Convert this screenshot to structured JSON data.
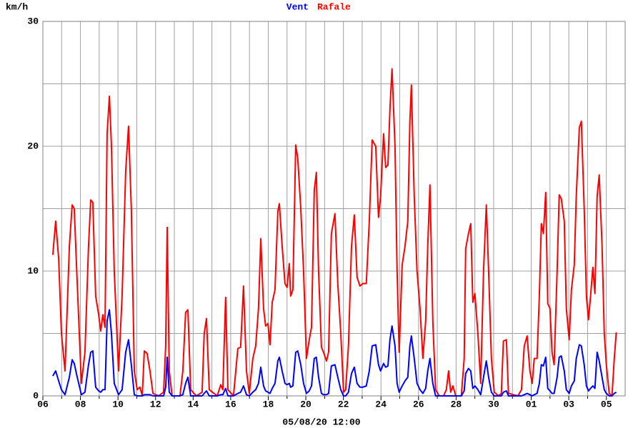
{
  "chart_data": {
    "type": "line",
    "y_label": "km/h",
    "x_label": "05/08/20 12:00",
    "xlim": [
      0,
      31
    ],
    "ylim": [
      0,
      30
    ],
    "yticks": [
      0,
      10,
      20,
      30
    ],
    "yminor": [
      5,
      15,
      25
    ],
    "xticks": [
      {
        "value": 0,
        "label": "06"
      },
      {
        "value": 2,
        "label": "08"
      },
      {
        "value": 4,
        "label": "10"
      },
      {
        "value": 6,
        "label": "12"
      },
      {
        "value": 8,
        "label": "14"
      },
      {
        "value": 10,
        "label": "16"
      },
      {
        "value": 12,
        "label": "18"
      },
      {
        "value": 14,
        "label": "20"
      },
      {
        "value": 16,
        "label": "22"
      },
      {
        "value": 18,
        "label": "24"
      },
      {
        "value": 20,
        "label": "26"
      },
      {
        "value": 22,
        "label": "28"
      },
      {
        "value": 24,
        "label": "30"
      },
      {
        "value": 26,
        "label": "01"
      },
      {
        "value": 28,
        "label": "03"
      },
      {
        "value": 30,
        "label": "05"
      }
    ],
    "xminor": [
      1,
      3,
      5,
      7,
      9,
      11,
      13,
      15,
      17,
      19,
      21,
      23,
      25,
      27,
      29
    ],
    "grid": true,
    "x": [
      0.53,
      0.68,
      0.84,
      0.99,
      1.18,
      1.41,
      1.56,
      1.67,
      1.83,
      2.05,
      2.24,
      2.43,
      2.55,
      2.66,
      2.81,
      2.97,
      3.08,
      3.19,
      3.31,
      3.42,
      3.54,
      3.65,
      3.8,
      4.03,
      4.22,
      4.41,
      4.56,
      4.71,
      4.87,
      5.02,
      5.17,
      5.29,
      5.4,
      5.55,
      5.7,
      5.86,
      6.16,
      6.43,
      6.54,
      6.62,
      6.73,
      6.88,
      7.3,
      7.45,
      7.6,
      7.72,
      7.87,
      8.17,
      8.48,
      8.59,
      8.71,
      8.86,
      9.28,
      9.47,
      9.58,
      9.73,
      9.85,
      10.15,
      10.38,
      10.53,
      10.68,
      10.84,
      10.99,
      11.18,
      11.33,
      11.48,
      11.6,
      11.75,
      11.86,
      11.98,
      12.09,
      12.21,
      12.36,
      12.51,
      12.59,
      12.74,
      12.89,
      13.0,
      13.12,
      13.19,
      13.31,
      13.46,
      13.57,
      13.73,
      13.88,
      14.03,
      14.18,
      14.3,
      14.45,
      14.56,
      14.68,
      14.83,
      14.94,
      15.1,
      15.21,
      15.36,
      15.55,
      15.7,
      15.86,
      16.01,
      16.12,
      16.27,
      16.43,
      16.58,
      16.73,
      16.88,
      17.03,
      17.22,
      17.38,
      17.53,
      17.72,
      17.87,
      17.98,
      18.14,
      18.25,
      18.37,
      18.48,
      18.59,
      18.75,
      18.86,
      18.97,
      19.13,
      19.28,
      19.43,
      19.54,
      19.62,
      19.77,
      19.92,
      20.08,
      20.23,
      20.38,
      20.49,
      20.61,
      20.76,
      20.91,
      21.1,
      21.33,
      21.48,
      21.6,
      21.71,
      21.83,
      21.98,
      22.28,
      22.43,
      22.51,
      22.66,
      22.78,
      22.89,
      23.0,
      23.16,
      23.31,
      23.46,
      23.61,
      23.73,
      23.88,
      24.03,
      24.26,
      24.41,
      24.52,
      24.68,
      24.79,
      25.29,
      25.48,
      25.63,
      25.78,
      25.93,
      26.05,
      26.16,
      26.31,
      26.43,
      26.54,
      26.65,
      26.77,
      26.88,
      27.0,
      27.11,
      27.22,
      27.38,
      27.49,
      27.6,
      27.76,
      27.87,
      28.02,
      28.14,
      28.29,
      28.4,
      28.56,
      28.67,
      28.82,
      28.94,
      29.05,
      29.16,
      29.28,
      29.39,
      29.51,
      29.62,
      29.77,
      29.89,
      30.0,
      30.15,
      30.3,
      30.42,
      30.53
    ],
    "series": [
      {
        "name": "Vent",
        "color": "#0000ff",
        "values": [
          1.6,
          2,
          1.2,
          0.5,
          0.1,
          1.5,
          2.9,
          2.6,
          1.5,
          0.1,
          0.3,
          2.5,
          3.5,
          3.6,
          0.7,
          0.4,
          0.3,
          0.5,
          0.5,
          6,
          6.9,
          5,
          1,
          0.1,
          0.5,
          3.5,
          4.5,
          2.5,
          0.1,
          0,
          0,
          0,
          0.1,
          0.1,
          0.1,
          0,
          0,
          0,
          0.7,
          3.1,
          0.3,
          0,
          0,
          0.1,
          1,
          1.5,
          0,
          0,
          0,
          0.2,
          0.4,
          0,
          0,
          0.1,
          0.1,
          0.6,
          0,
          0,
          0.2,
          0.3,
          0.8,
          0.1,
          0,
          0.3,
          0.5,
          1,
          2.3,
          0.8,
          0.4,
          0.3,
          0.2,
          0.6,
          1,
          2.8,
          3.1,
          2,
          1,
          0.9,
          1,
          0.7,
          0.8,
          3.5,
          3.6,
          2.5,
          1,
          0.2,
          0.4,
          0.8,
          3,
          3.1,
          1.5,
          0.2,
          0.1,
          0.1,
          0.2,
          2.4,
          2.5,
          1.5,
          0.5,
          0,
          0,
          0.3,
          1.8,
          2.3,
          1,
          0.7,
          0.7,
          0.8,
          2,
          4,
          4.1,
          2.5,
          2,
          2.6,
          2.3,
          2.4,
          4.5,
          5.6,
          4,
          1,
          0.3,
          0.8,
          1.2,
          1.5,
          4,
          4.8,
          3,
          1,
          0.5,
          0.2,
          0.6,
          2,
          3,
          1,
          0,
          0,
          0,
          0,
          0,
          0,
          0,
          0,
          0,
          0.4,
          1.8,
          2.2,
          2,
          0.6,
          0.8,
          0.5,
          0.1,
          1.5,
          2.8,
          1.5,
          0.3,
          0,
          0,
          0,
          0.3,
          0.4,
          0,
          0,
          0,
          0.1,
          0.2,
          0.1,
          0,
          0.1,
          0.2,
          1,
          2.5,
          2.4,
          3.1,
          0.6,
          0.4,
          0.2,
          0.2,
          1.5,
          3.1,
          3.2,
          2,
          0.5,
          0.2,
          0.8,
          1.2,
          3,
          4.1,
          4,
          2.5,
          0.8,
          0.4,
          0.6,
          0.8,
          0.6,
          3.5,
          2.8,
          1.5,
          0.5,
          0.2,
          0,
          0,
          0.2,
          0.3
        ]
      },
      {
        "name": "Rafale",
        "color": "#ff0000",
        "values": [
          11.3,
          14,
          11,
          5,
          2,
          12,
          15.3,
          15,
          9,
          1,
          3.5,
          12,
          15.7,
          15.5,
          8,
          6.5,
          5.2,
          6.5,
          5.5,
          21,
          24,
          20,
          10,
          2,
          8,
          18,
          21.6,
          15,
          2,
          0.5,
          0.7,
          0,
          3.6,
          3.4,
          2,
          0.2,
          0,
          0.3,
          4,
          13.5,
          2,
          0,
          0,
          2,
          6.7,
          6.9,
          0.5,
          0,
          0.3,
          5,
          6.2,
          0.5,
          0,
          0.9,
          0.5,
          7.9,
          0.5,
          0,
          3.8,
          3.9,
          8.8,
          2,
          0.2,
          3,
          4,
          7,
          12.6,
          7,
          5.6,
          5.8,
          4.1,
          7.5,
          8.5,
          14.8,
          15.4,
          12,
          9,
          8.7,
          10.6,
          8,
          8.5,
          20.1,
          19,
          15,
          10,
          3,
          4.5,
          5.5,
          16.5,
          17.9,
          10,
          3.9,
          3.5,
          2.8,
          3.5,
          13,
          14.6,
          9,
          5,
          0.3,
          0.5,
          4,
          12,
          14.5,
          9.5,
          8.8,
          9,
          9,
          14,
          20.5,
          20,
          14.3,
          16,
          21,
          18.3,
          18.5,
          23,
          26.2,
          20,
          10,
          3.5,
          10.5,
          12,
          14,
          22,
          24.9,
          16,
          10,
          7,
          3,
          6,
          12,
          16.9,
          6,
          0.5,
          0,
          0,
          0.5,
          2,
          0.3,
          0.8,
          0,
          0,
          3,
          11.8,
          13,
          13.8,
          7.5,
          8.2,
          5,
          1,
          10,
          15.3,
          10,
          3,
          0.3,
          0,
          0.2,
          4.4,
          4.5,
          0.2,
          0,
          0.5,
          4,
          4.8,
          2,
          1,
          3,
          3,
          8,
          13.8,
          13,
          16.3,
          7.4,
          7,
          3.5,
          2.5,
          10,
          16.1,
          15.8,
          14,
          7,
          4.5,
          8.5,
          10.5,
          16,
          21.5,
          22,
          15,
          8,
          6.1,
          8,
          10.3,
          8.2,
          16,
          17.7,
          12,
          5,
          2.5,
          0.2,
          0,
          3,
          5.1
        ]
      }
    ]
  }
}
